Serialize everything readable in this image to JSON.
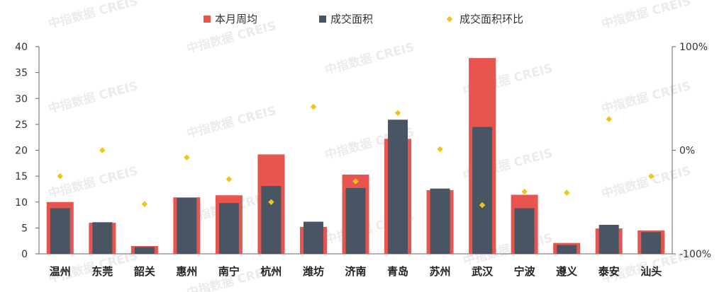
{
  "watermark_text": "中指数据 CREIS",
  "colors": {
    "weekly_avg": "#e8554e",
    "transaction_area": "#4a5563",
    "mom": "#f0c419",
    "axis": "#666666",
    "grid": "#ffffff"
  },
  "chart_data": {
    "type": "bar",
    "title": "",
    "xlabel": "",
    "ylabel": "",
    "categories": [
      "温州",
      "东莞",
      "韶关",
      "惠州",
      "南宁",
      "杭州",
      "潍坊",
      "济南",
      "青岛",
      "苏州",
      "武汉",
      "宁波",
      "遵义",
      "泰安",
      "汕头"
    ],
    "series": [
      {
        "name": "本月周均",
        "type": "bar",
        "axis": "left",
        "values": [
          10.0,
          6.0,
          1.5,
          10.9,
          11.3,
          19.2,
          5.2,
          15.3,
          22.2,
          12.3,
          37.8,
          11.4,
          2.1,
          4.9,
          4.5
        ]
      },
      {
        "name": "成交面积",
        "type": "bar",
        "axis": "left",
        "values": [
          8.8,
          6.1,
          1.3,
          10.8,
          9.8,
          13.1,
          6.2,
          12.7,
          25.9,
          12.6,
          24.5,
          8.8,
          1.7,
          5.6,
          4.2
        ]
      },
      {
        "name": "成交面积环比",
        "type": "scatter",
        "axis": "right",
        "unit": "%",
        "values": [
          -25,
          0,
          -52,
          -7,
          -28,
          -50,
          42,
          -30,
          36,
          1,
          -53,
          -40,
          -41,
          30,
          -25
        ]
      }
    ],
    "ylim_left": [
      0,
      40
    ],
    "yticks_left": [
      0,
      5,
      10,
      15,
      20,
      25,
      30,
      35,
      40
    ],
    "ylim_right": [
      -100,
      100
    ],
    "yticks_right": [
      {
        "value": -100,
        "label": "-100%"
      },
      {
        "value": 0,
        "label": "0%"
      },
      {
        "value": 100,
        "label": "100%"
      }
    ],
    "legend_position": "top-center",
    "grid": false
  }
}
